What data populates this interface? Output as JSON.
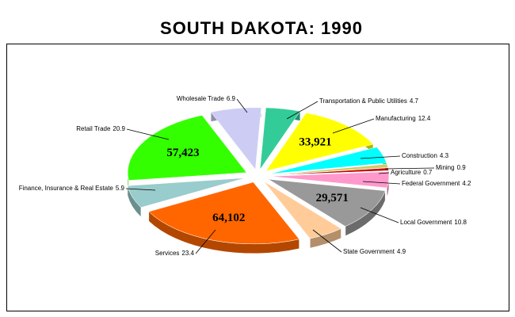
{
  "chart_data": {
    "type": "pie",
    "title": "SOUTH DAKOTA:  1990",
    "categories": [
      "Wholesale Trade",
      "Transportation & Public Utilities",
      "Manufacturing",
      "Construction",
      "Mining",
      "Agriculture",
      "Federal Government",
      "Local Government",
      "State Government",
      "Services",
      "Finance, Insurance & Real Estate",
      "Retail Trade"
    ],
    "values": [
      6.9,
      4.7,
      12.4,
      4.3,
      0.9,
      0.7,
      4.2,
      10.8,
      4.9,
      23.4,
      5.9,
      20.9
    ],
    "colors": [
      "#ccccf5",
      "#33cc99",
      "#ffff00",
      "#00ffff",
      "#cccc66",
      "#cc0000",
      "#ff99cc",
      "#999999",
      "#ffcc99",
      "#ff6600",
      "#99cccc",
      "#33ff00"
    ],
    "counts": [
      null,
      null,
      {
        "value": 33921,
        "label": "33,921"
      },
      null,
      null,
      null,
      null,
      {
        "value": 29571,
        "label": "29,571"
      },
      null,
      {
        "value": 64102,
        "label": "64,102"
      },
      null,
      {
        "value": 57423,
        "label": "57,423"
      }
    ]
  }
}
